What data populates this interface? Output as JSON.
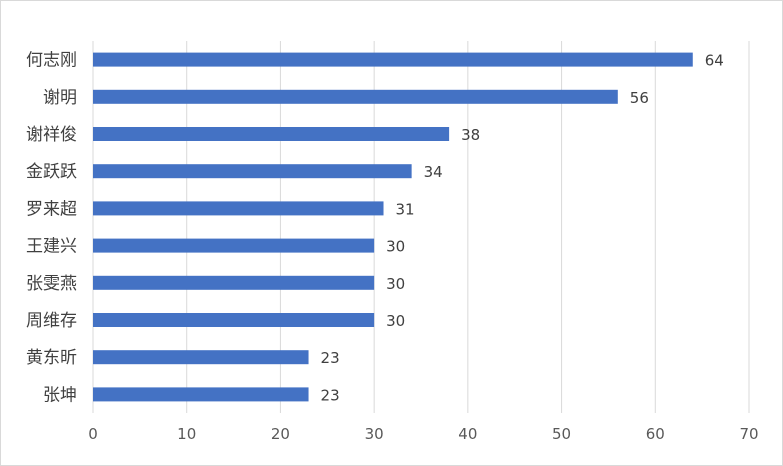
{
  "chart_data": {
    "type": "bar",
    "orientation": "horizontal",
    "categories": [
      "何志刚",
      "谢明",
      "谢祥俊",
      "金跃跃",
      "罗来超",
      "王建兴",
      "张雯燕",
      "周维存",
      "黄东昕",
      "张坤"
    ],
    "values": [
      64,
      56,
      38,
      34,
      31,
      30,
      30,
      30,
      23,
      23
    ],
    "xlim": [
      0,
      70
    ],
    "x_ticks": [
      0,
      10,
      20,
      30,
      40,
      50,
      60,
      70
    ],
    "title": "",
    "xlabel": "",
    "ylabel": "",
    "grid": true,
    "data_labels": true,
    "legend": "none",
    "colors": {
      "bar": "#4472c4",
      "grid": "#d9d9d9",
      "label": "#404040",
      "tick": "#595959"
    }
  }
}
